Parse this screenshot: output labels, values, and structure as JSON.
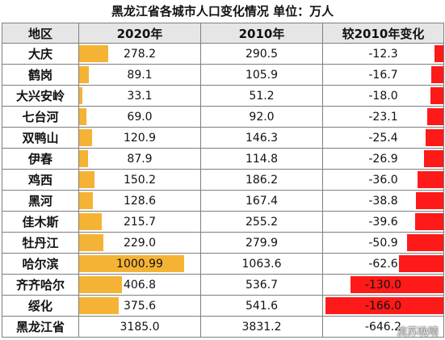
{
  "title": "黑龙江省各城市人口变化情况  单位：万人",
  "headers": [
    "地区",
    "2020年",
    "2010年",
    "较2010年变化"
  ],
  "rows": [
    {
      "region": "大庆",
      "y2020": "278.2",
      "y2010": "290.5",
      "change": "-12.3",
      "v2020": 278.2,
      "vchange": -12.3
    },
    {
      "region": "鹤岗",
      "y2020": "89.1",
      "y2010": "105.9",
      "change": "-16.7",
      "v2020": 89.1,
      "vchange": -16.7
    },
    {
      "region": "大兴安岭",
      "y2020": "33.1",
      "y2010": "51.2",
      "change": "-18.0",
      "v2020": 33.1,
      "vchange": -18.0
    },
    {
      "region": "七台河",
      "y2020": "69.0",
      "y2010": "92.0",
      "change": "-23.1",
      "v2020": 69.0,
      "vchange": -23.1
    },
    {
      "region": "双鸭山",
      "y2020": "120.9",
      "y2010": "146.3",
      "change": "-25.4",
      "v2020": 120.9,
      "vchange": -25.4
    },
    {
      "region": "伊春",
      "y2020": "87.9",
      "y2010": "114.8",
      "change": "-26.9",
      "v2020": 87.9,
      "vchange": -26.9
    },
    {
      "region": "鸡西",
      "y2020": "150.2",
      "y2010": "186.2",
      "change": "-36.0",
      "v2020": 150.2,
      "vchange": -36.0
    },
    {
      "region": "黑河",
      "y2020": "128.6",
      "y2010": "167.4",
      "change": "-38.8",
      "v2020": 128.6,
      "vchange": -38.8
    },
    {
      "region": "佳木斯",
      "y2020": "215.7",
      "y2010": "255.2",
      "change": "-39.6",
      "v2020": 215.7,
      "vchange": -39.6
    },
    {
      "region": "牡丹江",
      "y2020": "229.0",
      "y2010": "279.9",
      "change": "-50.9",
      "v2020": 229.0,
      "vchange": -50.9
    },
    {
      "region": "哈尔滨",
      "y2020": "1000.99",
      "y2010": "1063.6",
      "change": "-62.6",
      "v2020": 1000.99,
      "vchange": -62.6
    },
    {
      "region": "齐齐哈尔",
      "y2020": "406.8",
      "y2010": "536.7",
      "change": "-130.0",
      "v2020": 406.8,
      "vchange": -130.0
    },
    {
      "region": "绥化",
      "y2020": "375.6",
      "y2010": "541.6",
      "change": "-166.0",
      "v2020": 375.6,
      "vchange": -166.0
    },
    {
      "region": "黑龙江省",
      "y2020": "3185.0",
      "y2010": "3831.2",
      "change": "-646.2",
      "v2020": 3185.0,
      "vchange": -646.2,
      "nobar": true
    }
  ],
  "bar_colors": {
    "pop2020": "#f5b335",
    "change": "#ff1a1a"
  },
  "watermark": "流苏晚晴"
}
